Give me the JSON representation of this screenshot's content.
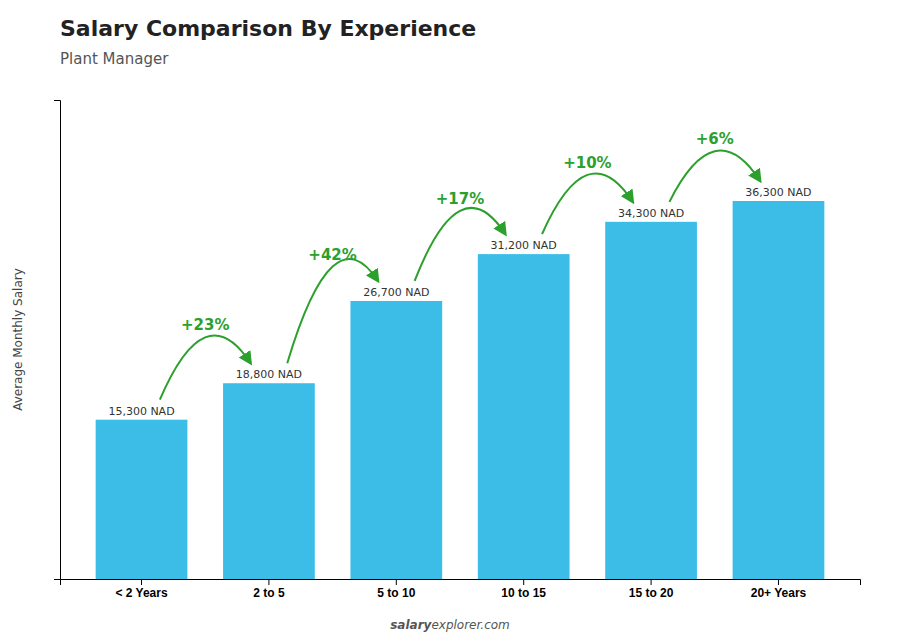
{
  "chart_data": {
    "type": "bar",
    "title": "Salary Comparison By Experience",
    "subtitle": "Plant Manager",
    "ylabel": "Average Monthly Salary",
    "categories": [
      "< 2 Years",
      "2 to 5",
      "5 to 10",
      "10 to 15",
      "15 to 20",
      "20+ Years"
    ],
    "values": [
      15300,
      18800,
      26700,
      31200,
      34300,
      36300
    ],
    "value_labels": [
      "15,300 NAD",
      "18,800 NAD",
      "26,700 NAD",
      "31,200 NAD",
      "34,300 NAD",
      "36,300 NAD"
    ],
    "data_labels": true,
    "color": "#3bbde8",
    "ylim": [
      0,
      46000
    ],
    "yticks": [],
    "tick_labels": "x",
    "grid": false,
    "annotations": [
      "+23%",
      "+42%",
      "+17%",
      "+10%",
      "+6%"
    ],
    "source": [
      "salary",
      "explorer.com"
    ]
  }
}
